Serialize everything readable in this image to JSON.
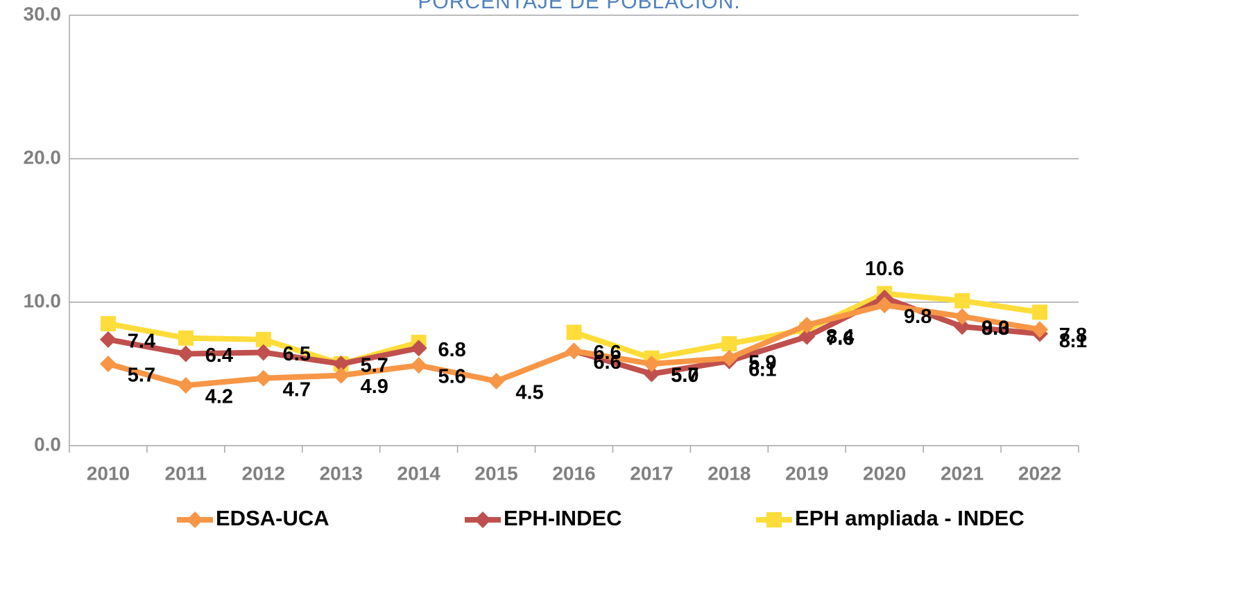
{
  "chart_data": {
    "type": "line",
    "title": "PORCENTAJE DE POBLACIÓN.",
    "categories": [
      "2010",
      "2011",
      "2012",
      "2013",
      "2014",
      "2015",
      "2016",
      "2017",
      "2018",
      "2019",
      "2020",
      "2021",
      "2022"
    ],
    "ylim": [
      0,
      30
    ],
    "yticks": [
      {
        "value": 0,
        "label": "0.0"
      },
      {
        "value": 10,
        "label": "10.0"
      },
      {
        "value": 20,
        "label": "20.0"
      },
      {
        "value": 30,
        "label": "30.0"
      }
    ],
    "grid": true,
    "legend": "bottom",
    "series": [
      {
        "name": "EDSA-UCA",
        "color": "#f79646",
        "marker": "diamond",
        "values": [
          5.7,
          4.2,
          4.7,
          4.9,
          5.6,
          4.5,
          6.6,
          5.7,
          6.1,
          8.4,
          9.8,
          9.0,
          8.1
        ],
        "value_labels": [
          "5.7",
          "4.2",
          "4.7",
          "4.9",
          "5.6",
          "4.5",
          "6.6",
          "5.7",
          "6.1",
          "8.4",
          "9.8",
          "9.0",
          "8.1"
        ]
      },
      {
        "name": "EPH-INDEC",
        "color": "#c0504d",
        "marker": "diamond",
        "values": [
          7.4,
          6.4,
          6.5,
          5.7,
          6.8,
          null,
          6.6,
          5.0,
          5.9,
          7.6,
          10.3,
          8.3,
          7.8
        ],
        "value_labels": [
          "7.4",
          "6.4",
          "6.5",
          "5.7",
          "6.8",
          null,
          "6.6",
          "5.0",
          "5.9",
          "7.6",
          null,
          "8.3",
          "7.8"
        ]
      },
      {
        "name": "EPH ampliada - INDEC",
        "color": "#fedd3a",
        "marker": "square",
        "values": [
          8.5,
          7.5,
          7.4,
          5.7,
          7.2,
          null,
          7.9,
          6.1,
          7.1,
          8.1,
          10.6,
          10.1,
          9.3
        ],
        "value_labels": [
          null,
          null,
          null,
          null,
          null,
          null,
          null,
          null,
          null,
          null,
          "10.6",
          null,
          null
        ]
      }
    ]
  }
}
